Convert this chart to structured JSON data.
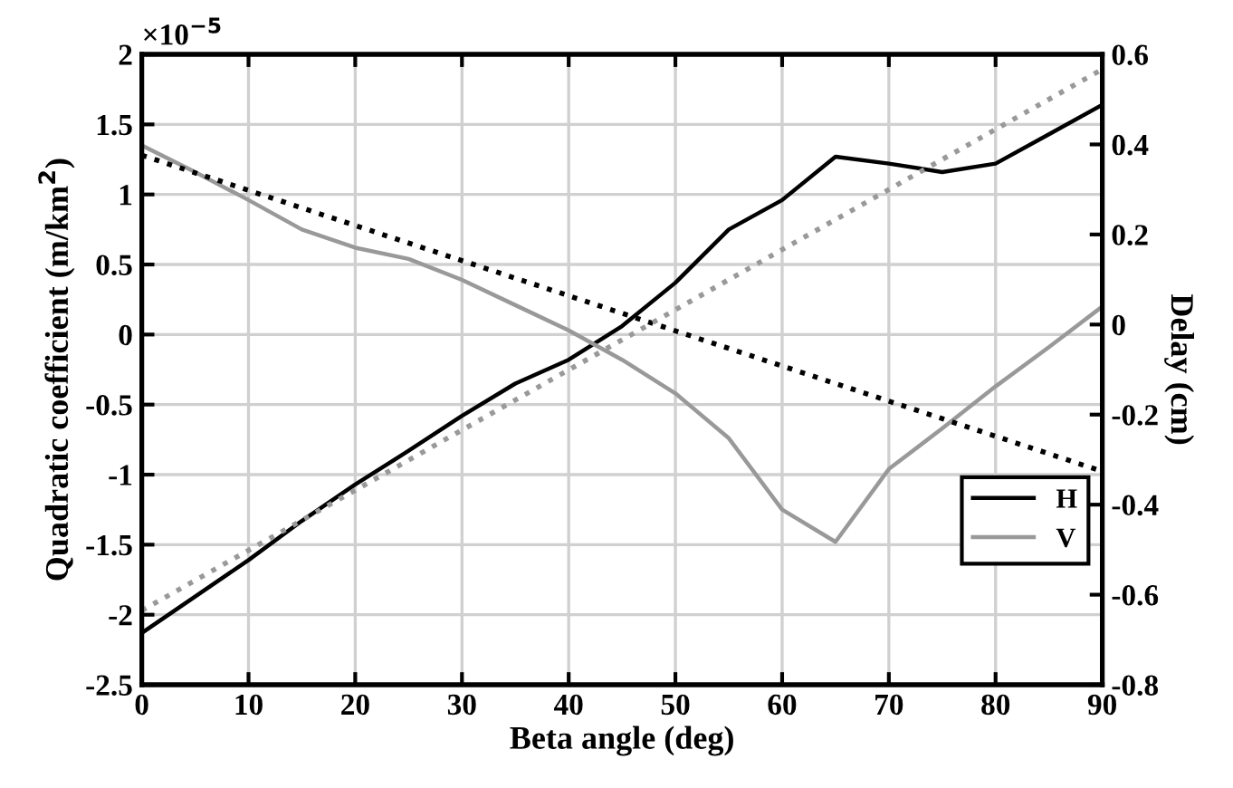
{
  "chart_data": {
    "type": "line",
    "xlabel": "Beta angle (deg)",
    "ylabel": "Quadratic coefficient (m/km$^{2}$)",
    "y2label": "Delay (cm)",
    "annotations": [
      "×10$^{−5}$"
    ],
    "series": [
      {
        "name": "H",
        "color": "#000000",
        "line_style": "solid",
        "x": [
          0,
          5,
          10,
          15,
          20,
          25,
          30,
          35,
          40,
          45,
          50,
          55,
          60,
          65,
          70,
          75,
          80,
          85,
          90
        ],
        "values": [
          -2.13,
          -1.87,
          -1.61,
          -1.33,
          -1.07,
          -0.83,
          -0.58,
          -0.35,
          -0.18,
          0.06,
          0.37,
          0.75,
          0.96,
          1.27,
          1.22,
          1.16,
          1.22,
          1.43,
          1.64
        ]
      },
      {
        "name": "V",
        "color": "#999999",
        "line_style": "solid",
        "x": [
          0,
          5,
          10,
          15,
          20,
          25,
          30,
          35,
          40,
          45,
          50,
          55,
          60,
          65,
          70,
          75,
          80,
          85,
          90
        ],
        "values": [
          1.35,
          1.16,
          0.96,
          0.75,
          0.62,
          0.54,
          0.39,
          0.21,
          0.03,
          -0.18,
          -0.42,
          -0.74,
          -1.25,
          -1.48,
          -0.96,
          -0.67,
          -0.37,
          -0.09,
          0.2
        ]
      },
      {
        "color": "#000000",
        "line_style": "dotted",
        "axis": "y2",
        "x": [
          0,
          90
        ],
        "values": [
          0.376,
          -0.326
        ]
      },
      {
        "color": "#999999",
        "line_style": "dotted",
        "axis": "y2",
        "x": [
          0,
          90
        ],
        "values": [
          -0.635,
          0.567
        ]
      }
    ],
    "xlim": [
      0,
      90
    ],
    "xticks": [
      0,
      10,
      20,
      30,
      40,
      50,
      60,
      70,
      80,
      90
    ],
    "ylim": [
      -2.5,
      2
    ],
    "yticks": [
      -2.5,
      -2,
      -1.5,
      -1,
      -0.5,
      0,
      0.5,
      1,
      1.5,
      2
    ],
    "y2lim": [
      -0.8,
      0.6
    ],
    "y2ticks": [
      -0.8,
      -0.6,
      -0.4,
      -0.2,
      0,
      0.2,
      0.4,
      0.6
    ],
    "grid": true,
    "legend": "bottom right",
    "marker": "none"
  }
}
